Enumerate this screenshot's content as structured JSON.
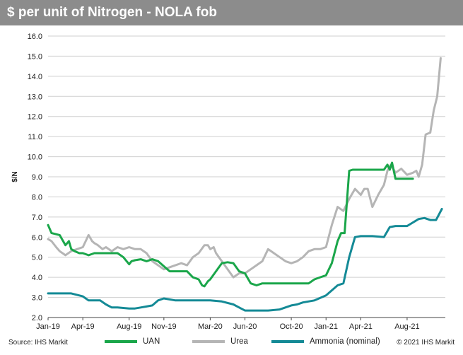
{
  "title": "$ per unit of Nitrogen - NOLA fob",
  "source": "Source: IHS Markit",
  "copyright": "© 2021 IHS Markit",
  "chart_data": {
    "type": "line",
    "title": "$ per unit of Nitrogen - NOLA fob",
    "xlabel": "",
    "ylabel": "$/N",
    "ylim": [
      2.0,
      16.0
    ],
    "yticks": [
      "2.0",
      "3.0",
      "4.0",
      "5.0",
      "6.0",
      "7.0",
      "8.0",
      "9.0",
      "10.0",
      "11.0",
      "12.0",
      "13.0",
      "14.0",
      "15.0",
      "16.0"
    ],
    "xlim": [
      0,
      34.3
    ],
    "xticks": [
      {
        "label": "Jan-19",
        "x": 0
      },
      {
        "label": "Apr-19",
        "x": 3
      },
      {
        "label": "Aug-19",
        "x": 7
      },
      {
        "label": "Nov-19",
        "x": 10
      },
      {
        "label": "Mar-20",
        "x": 14
      },
      {
        "label": "Jun-20",
        "x": 17
      },
      {
        "label": "Oct-20",
        "x": 21
      },
      {
        "label": "Jan-21",
        "x": 24
      },
      {
        "label": "Apr-21",
        "x": 27
      },
      {
        "label": "Aug-21",
        "x": 31
      }
    ],
    "x_unit": "months since Jan-19",
    "grid": true,
    "legend": "bottom",
    "series": [
      {
        "name": "UAN",
        "color": "#1aa64a",
        "x": [
          0,
          0.3,
          1.0,
          1.5,
          1.8,
          2.0,
          2.3,
          2.7,
          3.0,
          3.5,
          4.0,
          4.5,
          5.0,
          5.5,
          6.0,
          6.5,
          7.0,
          7.2,
          7.5,
          8.0,
          8.5,
          9.0,
          9.5,
          10.0,
          10.5,
          11.0,
          11.5,
          12.0,
          12.5,
          13.0,
          13.3,
          13.5,
          13.8,
          14.0,
          14.5,
          15.0,
          15.5,
          16.0,
          16.5,
          17.0,
          17.5,
          18.0,
          18.5,
          19.0,
          19.5,
          20.0,
          21.0,
          22.0,
          22.5,
          23.0,
          23.5,
          24.0,
          24.5,
          25.0,
          25.3,
          25.6,
          26.0,
          26.3,
          26.6,
          27.0,
          28.0,
          29.0,
          29.3,
          29.5,
          29.7,
          30.0,
          30.5,
          31.0,
          31.5
        ],
        "values": [
          6.6,
          6.2,
          6.1,
          5.6,
          5.8,
          5.4,
          5.3,
          5.2,
          5.2,
          5.1,
          5.2,
          5.2,
          5.2,
          5.2,
          5.2,
          5.0,
          4.65,
          4.8,
          4.85,
          4.9,
          4.8,
          4.9,
          4.8,
          4.55,
          4.3,
          4.3,
          4.3,
          4.3,
          4.0,
          3.9,
          3.6,
          3.55,
          3.8,
          3.9,
          4.3,
          4.7,
          4.75,
          4.7,
          4.3,
          4.2,
          3.7,
          3.6,
          3.7,
          3.7,
          3.7,
          3.7,
          3.7,
          3.7,
          3.7,
          3.9,
          4.0,
          4.1,
          4.7,
          5.8,
          6.2,
          6.2,
          9.3,
          9.35,
          9.35,
          9.35,
          9.35,
          9.35,
          9.6,
          9.35,
          9.7,
          8.9,
          8.9,
          8.9,
          8.9
        ]
      },
      {
        "name": "Urea",
        "color": "#b5b5b5",
        "x": [
          0,
          0.3,
          0.7,
          1.0,
          1.5,
          2.0,
          2.5,
          3.0,
          3.5,
          3.8,
          4.0,
          4.3,
          4.7,
          5.0,
          5.5,
          6.0,
          6.5,
          7.0,
          7.5,
          8.0,
          8.5,
          9.0,
          9.5,
          10.0,
          10.5,
          11.0,
          11.5,
          12.0,
          12.5,
          13.0,
          13.5,
          13.8,
          14.0,
          14.3,
          14.5,
          15.0,
          15.5,
          16.0,
          16.5,
          17.0,
          17.5,
          18.0,
          18.5,
          19.0,
          19.5,
          20.0,
          20.5,
          21.0,
          21.5,
          22.0,
          22.5,
          23.0,
          23.5,
          24.0,
          24.5,
          25.0,
          25.5,
          26.0,
          26.5,
          27.0,
          27.3,
          27.6,
          28.0,
          28.5,
          29.0,
          29.3,
          29.6,
          30.0,
          30.5,
          31.0,
          31.5,
          31.8,
          32.0,
          32.3,
          32.6,
          33.0,
          33.3,
          33.6,
          33.9
        ],
        "values": [
          5.9,
          5.8,
          5.5,
          5.3,
          5.1,
          5.3,
          5.4,
          5.5,
          6.1,
          5.8,
          5.7,
          5.6,
          5.4,
          5.5,
          5.3,
          5.5,
          5.4,
          5.5,
          5.4,
          5.4,
          5.2,
          4.8,
          4.6,
          4.4,
          4.5,
          4.6,
          4.7,
          4.6,
          5.0,
          5.2,
          5.6,
          5.6,
          5.4,
          5.5,
          5.2,
          4.8,
          4.4,
          4.0,
          4.2,
          4.2,
          4.4,
          4.6,
          4.8,
          5.4,
          5.2,
          5.0,
          4.8,
          4.7,
          4.8,
          5.0,
          5.3,
          5.4,
          5.4,
          5.5,
          6.6,
          7.5,
          7.3,
          7.9,
          8.4,
          8.1,
          8.4,
          8.4,
          7.5,
          8.1,
          8.6,
          9.3,
          9.6,
          9.2,
          9.4,
          9.1,
          9.2,
          9.3,
          9.0,
          9.6,
          11.1,
          11.2,
          12.3,
          13.0,
          14.9
        ]
      },
      {
        "name": "Ammonia (nominal)",
        "color": "#148a96",
        "x": [
          0,
          1.0,
          2.0,
          3.0,
          3.5,
          4.0,
          4.5,
          5.0,
          5.5,
          6.0,
          7.0,
          7.5,
          8.0,
          8.5,
          9.0,
          9.5,
          10.0,
          11.0,
          12.0,
          13.0,
          14.0,
          15.0,
          16.0,
          16.5,
          17.0,
          18.0,
          19.0,
          20.0,
          21.0,
          21.5,
          22.0,
          23.0,
          24.0,
          25.0,
          25.5,
          26.0,
          26.5,
          27.0,
          28.0,
          29.0,
          29.5,
          30.0,
          31.0,
          32.0,
          32.5,
          33.0,
          33.5,
          34.0
        ],
        "values": [
          3.2,
          3.2,
          3.2,
          3.05,
          2.85,
          2.85,
          2.85,
          2.65,
          2.5,
          2.5,
          2.45,
          2.45,
          2.5,
          2.55,
          2.6,
          2.85,
          2.95,
          2.85,
          2.85,
          2.85,
          2.85,
          2.8,
          2.65,
          2.5,
          2.35,
          2.35,
          2.35,
          2.4,
          2.6,
          2.65,
          2.75,
          2.85,
          3.1,
          3.6,
          3.7,
          5.0,
          6.0,
          6.05,
          6.05,
          6.0,
          6.5,
          6.55,
          6.55,
          6.9,
          6.95,
          6.85,
          6.85,
          7.4
        ]
      }
    ]
  },
  "legend": [
    {
      "label": "UAN",
      "color": "#1aa64a"
    },
    {
      "label": "Urea",
      "color": "#b5b5b5"
    },
    {
      "label": "Ammonia (nominal)",
      "color": "#148a96"
    }
  ]
}
